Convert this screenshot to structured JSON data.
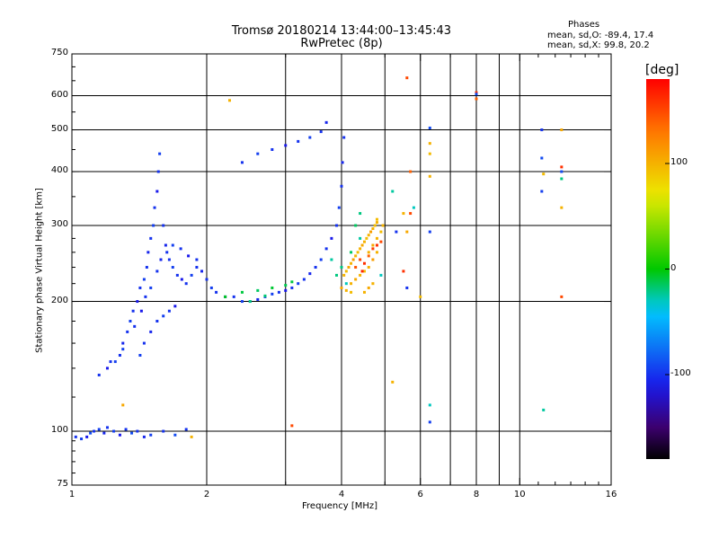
{
  "chart_data": {
    "type": "scatter",
    "title": "Tromsø 20180214 13:44:00–13:45:43",
    "subtitle": "RwPretec (8p)",
    "xlabel": "Frequency [MHz]",
    "ylabel": "Stationary phase Virtual Height [km]",
    "x_scale": "log",
    "y_scale": "log",
    "xlim": [
      1,
      16
    ],
    "ylim": [
      75,
      750
    ],
    "x_ticks": [
      1,
      2,
      4,
      6,
      8,
      10,
      16
    ],
    "y_ticks": [
      75,
      100,
      200,
      300,
      400,
      500,
      600,
      750
    ],
    "x_grid": [
      1,
      2,
      3,
      4,
      5,
      6,
      7,
      8,
      9,
      10,
      16
    ],
    "y_grid": [
      100,
      200,
      300,
      400,
      500,
      600
    ],
    "grid": true,
    "colorbar": {
      "label": "[deg]",
      "range": [
        -180,
        180
      ],
      "ticks": [
        100,
        0,
        -100
      ]
    },
    "stats": {
      "heading": "Phases",
      "o_line": "mean, sd,O: -89.4, 17.4",
      "x_line": "mean, sd,X: 99.8, 20.2"
    },
    "series": [
      {
        "points": [
          [
            1.02,
            97,
            -100
          ],
          [
            1.05,
            96,
            -95
          ],
          [
            1.08,
            97,
            -110
          ],
          [
            1.1,
            99,
            -90
          ],
          [
            1.12,
            100,
            -100
          ],
          [
            1.15,
            101,
            -95
          ],
          [
            1.18,
            99,
            -105
          ],
          [
            1.2,
            102,
            -100
          ],
          [
            1.24,
            100,
            -95
          ],
          [
            1.28,
            98,
            -110
          ],
          [
            1.32,
            101,
            -100
          ],
          [
            1.36,
            99,
            -90
          ],
          [
            1.4,
            100,
            -100
          ],
          [
            1.45,
            97,
            -105
          ],
          [
            1.5,
            98,
            -95
          ],
          [
            1.6,
            100,
            -100
          ],
          [
            1.7,
            98,
            -90
          ],
          [
            1.8,
            101,
            -100
          ],
          [
            1.15,
            135,
            -100
          ],
          [
            1.2,
            140,
            -110
          ],
          [
            1.25,
            145,
            -95
          ],
          [
            1.28,
            150,
            -100
          ],
          [
            1.3,
            160,
            -105
          ],
          [
            1.33,
            170,
            -100
          ],
          [
            1.35,
            180,
            -95
          ],
          [
            1.37,
            190,
            -100
          ],
          [
            1.4,
            200,
            -110
          ],
          [
            1.42,
            215,
            -100
          ],
          [
            1.45,
            225,
            -95
          ],
          [
            1.47,
            240,
            -100
          ],
          [
            1.48,
            260,
            -105
          ],
          [
            1.5,
            280,
            -100
          ],
          [
            1.52,
            300,
            -95
          ],
          [
            1.53,
            330,
            -100
          ],
          [
            1.55,
            360,
            -110
          ],
          [
            1.56,
            400,
            -100
          ],
          [
            1.57,
            440,
            -95
          ],
          [
            1.6,
            300,
            -100
          ],
          [
            1.62,
            270,
            -105
          ],
          [
            1.65,
            250,
            -100
          ],
          [
            1.68,
            240,
            -95
          ],
          [
            1.72,
            230,
            -100
          ],
          [
            1.76,
            225,
            -110
          ],
          [
            1.8,
            220,
            -100
          ],
          [
            1.85,
            230,
            -95
          ],
          [
            1.9,
            240,
            -100
          ],
          [
            1.95,
            235,
            -105
          ],
          [
            2.0,
            225,
            -100
          ],
          [
            2.05,
            215,
            -95
          ],
          [
            2.1,
            210,
            -100
          ],
          [
            2.2,
            205,
            -110
          ],
          [
            2.3,
            205,
            -100
          ],
          [
            2.4,
            200,
            -95
          ],
          [
            2.5,
            200,
            -100
          ],
          [
            2.6,
            202,
            -105
          ],
          [
            2.7,
            205,
            -100
          ],
          [
            2.8,
            208,
            -95
          ],
          [
            2.9,
            210,
            -100
          ],
          [
            3.0,
            212,
            -110
          ],
          [
            3.1,
            215,
            -100
          ],
          [
            3.2,
            220,
            -95
          ],
          [
            3.3,
            225,
            -100
          ],
          [
            3.4,
            232,
            -105
          ],
          [
            3.5,
            240,
            -100
          ],
          [
            3.6,
            250,
            -95
          ],
          [
            3.7,
            265,
            -100
          ],
          [
            3.8,
            280,
            -110
          ],
          [
            3.9,
            300,
            -100
          ],
          [
            3.95,
            330,
            -95
          ],
          [
            4.0,
            370,
            -100
          ],
          [
            4.02,
            420,
            -105
          ],
          [
            4.05,
            480,
            -100
          ],
          [
            2.4,
            420,
            -100
          ],
          [
            2.6,
            440,
            -95
          ],
          [
            2.8,
            450,
            -100
          ],
          [
            3.0,
            460,
            -110
          ],
          [
            3.2,
            470,
            -100
          ],
          [
            3.4,
            480,
            -95
          ],
          [
            3.6,
            495,
            -100
          ],
          [
            3.7,
            520,
            -105
          ],
          [
            1.22,
            145,
            -100
          ],
          [
            1.3,
            155,
            -95
          ],
          [
            1.38,
            175,
            -100
          ],
          [
            1.43,
            190,
            -110
          ],
          [
            1.46,
            205,
            -100
          ],
          [
            1.5,
            215,
            -95
          ],
          [
            1.55,
            235,
            -100
          ],
          [
            1.58,
            250,
            -105
          ],
          [
            1.63,
            260,
            -100
          ],
          [
            1.68,
            270,
            -95
          ],
          [
            1.75,
            265,
            -100
          ],
          [
            1.82,
            255,
            -110
          ],
          [
            1.9,
            250,
            -100
          ],
          [
            1.42,
            150,
            -95
          ],
          [
            1.45,
            160,
            -100
          ],
          [
            1.5,
            170,
            -105
          ],
          [
            1.55,
            180,
            -100
          ],
          [
            1.6,
            185,
            -95
          ],
          [
            1.65,
            190,
            -100
          ],
          [
            1.7,
            195,
            -110
          ]
        ]
      },
      {
        "points": [
          [
            2.2,
            205,
            -5
          ],
          [
            2.4,
            210,
            -10
          ],
          [
            2.6,
            212,
            -15
          ],
          [
            2.8,
            215,
            -8
          ],
          [
            3.0,
            218,
            -12
          ],
          [
            2.5,
            200,
            -20
          ],
          [
            2.7,
            206,
            -18
          ],
          [
            3.1,
            222,
            -10
          ],
          [
            4.0,
            240,
            -20
          ],
          [
            4.2,
            260,
            -15
          ],
          [
            4.4,
            280,
            -25
          ],
          [
            4.1,
            220,
            -30
          ],
          [
            3.9,
            230,
            -20
          ],
          [
            3.8,
            250,
            -25
          ],
          [
            4.3,
            300,
            -15
          ],
          [
            4.4,
            320,
            -20
          ]
        ]
      },
      {
        "points": [
          [
            4.05,
            230,
            100
          ],
          [
            4.1,
            235,
            95
          ],
          [
            4.15,
            240,
            105
          ],
          [
            4.2,
            245,
            100
          ],
          [
            4.25,
            250,
            110
          ],
          [
            4.3,
            255,
            100
          ],
          [
            4.35,
            260,
            95
          ],
          [
            4.4,
            265,
            100
          ],
          [
            4.45,
            270,
            105
          ],
          [
            4.5,
            275,
            100
          ],
          [
            4.55,
            280,
            95
          ],
          [
            4.6,
            285,
            100
          ],
          [
            4.65,
            290,
            110
          ],
          [
            4.7,
            295,
            100
          ],
          [
            4.75,
            300,
            95
          ],
          [
            4.8,
            305,
            100
          ],
          [
            4.2,
            220,
            100
          ],
          [
            4.3,
            225,
            105
          ],
          [
            4.4,
            230,
            100
          ],
          [
            4.5,
            235,
            95
          ],
          [
            4.6,
            240,
            100
          ],
          [
            4.7,
            250,
            110
          ],
          [
            4.8,
            260,
            100
          ],
          [
            4.0,
            215,
            105
          ],
          [
            4.1,
            212,
            100
          ],
          [
            4.2,
            210,
            95
          ],
          [
            4.6,
            260,
            100
          ],
          [
            4.7,
            270,
            105
          ],
          [
            4.8,
            280,
            100
          ],
          [
            4.9,
            290,
            95
          ],
          [
            4.95,
            300,
            100
          ],
          [
            4.5,
            210,
            100
          ],
          [
            4.6,
            215,
            105
          ],
          [
            4.7,
            220,
            100
          ]
        ]
      },
      {
        "points": [
          [
            4.4,
            250,
            150
          ],
          [
            4.5,
            245,
            160
          ],
          [
            4.6,
            255,
            140
          ],
          [
            4.7,
            265,
            155
          ],
          [
            4.3,
            240,
            145
          ],
          [
            4.8,
            270,
            160
          ],
          [
            4.9,
            275,
            150
          ],
          [
            4.45,
            235,
            165
          ],
          [
            5.6,
            660,
            150
          ],
          [
            8.0,
            610,
            160
          ],
          [
            8.0,
            590,
            140
          ],
          [
            3.1,
            103,
            150
          ],
          [
            12.4,
            410,
            160
          ],
          [
            12.4,
            205,
            150
          ],
          [
            5.7,
            400,
            140
          ],
          [
            5.5,
            235,
            160
          ],
          [
            5.7,
            320,
            150
          ]
        ]
      },
      {
        "points": [
          [
            2.25,
            585,
            100
          ],
          [
            4.8,
            310,
            95
          ],
          [
            5.5,
            320,
            100
          ],
          [
            5.6,
            290,
            105
          ],
          [
            6.3,
            465,
            100
          ],
          [
            6.3,
            440,
            95
          ],
          [
            6.3,
            390,
            100
          ],
          [
            12.4,
            500,
            105
          ],
          [
            12.4,
            330,
            100
          ],
          [
            11.3,
            395,
            95
          ],
          [
            5.2,
            130,
            100
          ],
          [
            1.3,
            115,
            105
          ],
          [
            1.85,
            97,
            100
          ],
          [
            6.0,
            205,
            95
          ]
        ]
      },
      {
        "points": [
          [
            6.3,
            505,
            -90
          ],
          [
            6.3,
            290,
            -95
          ],
          [
            11.2,
            500,
            -100
          ],
          [
            11.2,
            430,
            -90
          ],
          [
            11.2,
            360,
            -95
          ],
          [
            12.4,
            400,
            -90
          ],
          [
            5.6,
            215,
            -100
          ],
          [
            6.3,
            105,
            -95
          ],
          [
            8.0,
            605,
            -90
          ],
          [
            5.3,
            290,
            -100
          ]
        ]
      },
      {
        "points": [
          [
            6.3,
            115,
            -30
          ],
          [
            11.3,
            112,
            -25
          ],
          [
            12.4,
            385,
            -20
          ],
          [
            5.8,
            330,
            -30
          ],
          [
            5.2,
            360,
            -25
          ],
          [
            4.9,
            230,
            -30
          ]
        ]
      }
    ],
    "point_fields": [
      "frequency_MHz",
      "virtual_height_km",
      "phase_deg"
    ]
  }
}
